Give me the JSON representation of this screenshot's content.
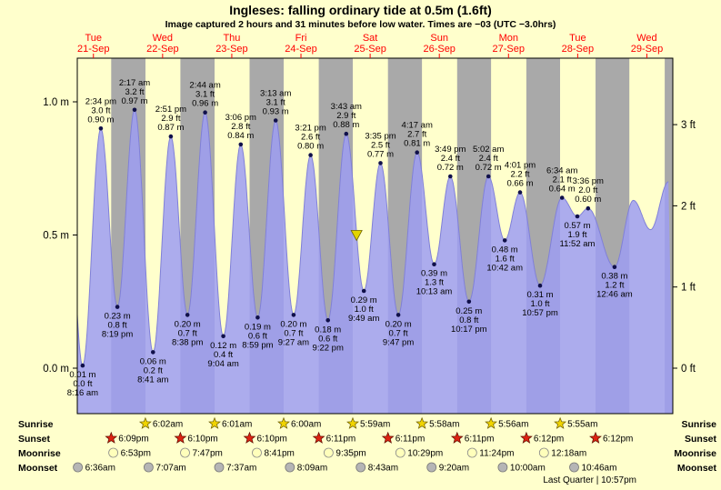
{
  "chart_data": {
    "type": "area",
    "title": "Ingleses: falling  ordinary tide at 0.5m (1.6ft)",
    "subtitle": "Image captured 2 hours and 31 minutes before low water. Times are −03 (UTC −3.0hrs)",
    "y_axis_left": {
      "unit": "m",
      "ticks": [
        {
          "label": "0.0 m",
          "m": 0
        },
        {
          "label": "0.5 m",
          "m": 0.5
        },
        {
          "label": "1.0 m",
          "m": 1.0
        }
      ]
    },
    "y_axis_right": {
      "unit": "ft",
      "ticks": [
        {
          "label": "0 ft",
          "m": 0
        },
        {
          "label": "1 ft",
          "m": 0.3048
        },
        {
          "label": "2 ft",
          "m": 0.6096
        },
        {
          "label": "3 ft",
          "m": 0.9144
        }
      ]
    },
    "days": [
      {
        "name": "Tue",
        "date": "21-Sep"
      },
      {
        "name": "Wed",
        "date": "22-Sep"
      },
      {
        "name": "Thu",
        "date": "23-Sep"
      },
      {
        "name": "Fri",
        "date": "24-Sep"
      },
      {
        "name": "Sat",
        "date": "25-Sep"
      },
      {
        "name": "Sun",
        "date": "26-Sep"
      },
      {
        "name": "Mon",
        "date": "27-Sep"
      },
      {
        "name": "Tue",
        "date": "28-Sep"
      },
      {
        "name": "Wed",
        "date": "29-Sep"
      }
    ],
    "tide_events": [
      {
        "day": 0,
        "hour": 2.0,
        "m": 0.95,
        "type": "high",
        "synthetic": true
      },
      {
        "day": 0,
        "time": "8:16 am",
        "m": 0.01,
        "ft": 0.0,
        "type": "low"
      },
      {
        "day": 0,
        "time": "2:34 pm",
        "m": 0.9,
        "ft": 3.0,
        "type": "high"
      },
      {
        "day": 0,
        "time": "8:19 pm",
        "m": 0.23,
        "ft": 0.8,
        "type": "low"
      },
      {
        "day": 1,
        "time": "2:17 am",
        "m": 0.97,
        "ft": 3.2,
        "type": "high"
      },
      {
        "day": 1,
        "time": "8:41 am",
        "m": 0.06,
        "ft": 0.2,
        "type": "low"
      },
      {
        "day": 1,
        "time": "2:51 pm",
        "m": 0.87,
        "ft": 2.9,
        "type": "high"
      },
      {
        "day": 1,
        "time": "8:38 pm",
        "m": 0.2,
        "ft": 0.7,
        "type": "low"
      },
      {
        "day": 2,
        "time": "2:44 am",
        "m": 0.96,
        "ft": 3.1,
        "type": "high"
      },
      {
        "day": 2,
        "time": "9:04 am",
        "m": 0.12,
        "ft": 0.4,
        "type": "low"
      },
      {
        "day": 2,
        "time": "3:06 pm",
        "m": 0.84,
        "ft": 2.8,
        "type": "high"
      },
      {
        "day": 2,
        "time": "8:59 pm",
        "m": 0.19,
        "ft": 0.6,
        "type": "low"
      },
      {
        "day": 3,
        "time": "3:13 am",
        "m": 0.93,
        "ft": 3.1,
        "type": "high"
      },
      {
        "day": 3,
        "time": "9:27 am",
        "m": 0.2,
        "ft": 0.7,
        "type": "low"
      },
      {
        "day": 3,
        "time": "3:21 pm",
        "m": 0.8,
        "ft": 2.6,
        "type": "high"
      },
      {
        "day": 3,
        "time": "9:22 pm",
        "m": 0.18,
        "ft": 0.6,
        "type": "low"
      },
      {
        "day": 4,
        "time": "3:43 am",
        "m": 0.88,
        "ft": 2.9,
        "type": "high"
      },
      {
        "day": 4,
        "time": "9:49 am",
        "m": 0.29,
        "ft": 1.0,
        "type": "low"
      },
      {
        "day": 4,
        "time": "3:35 pm",
        "m": 0.77,
        "ft": 2.5,
        "type": "high"
      },
      {
        "day": 4,
        "time": "9:47 pm",
        "m": 0.2,
        "ft": 0.7,
        "type": "low"
      },
      {
        "day": 5,
        "time": "4:17 am",
        "m": 0.81,
        "ft": 2.7,
        "type": "high"
      },
      {
        "day": 5,
        "time": "10:13 am",
        "m": 0.39,
        "ft": 1.3,
        "type": "low"
      },
      {
        "day": 5,
        "time": "3:49 pm",
        "m": 0.72,
        "ft": 2.4,
        "type": "high"
      },
      {
        "day": 5,
        "time": "10:17 pm",
        "m": 0.25,
        "ft": 0.8,
        "type": "low"
      },
      {
        "day": 6,
        "time": "5:02 am",
        "m": 0.72,
        "ft": 2.4,
        "type": "high"
      },
      {
        "day": 6,
        "time": "10:42 am",
        "m": 0.48,
        "ft": 1.6,
        "type": "low"
      },
      {
        "day": 6,
        "time": "4:01 pm",
        "m": 0.66,
        "ft": 2.2,
        "type": "high"
      },
      {
        "day": 6,
        "time": "10:57 pm",
        "m": 0.31,
        "ft": 1.0,
        "type": "low"
      },
      {
        "day": 7,
        "time": "6:34 am",
        "m": 0.64,
        "ft": 2.1,
        "type": "high"
      },
      {
        "day": 7,
        "time": "11:52 am",
        "m": 0.57,
        "ft": 1.9,
        "type": "low"
      },
      {
        "day": 7,
        "time": "3:36 pm",
        "m": 0.6,
        "ft": 2.0,
        "type": "high"
      },
      {
        "day": 8,
        "time": "12:46 am",
        "m": 0.38,
        "ft": 1.2,
        "type": "low"
      },
      {
        "day": 8,
        "hour": 7.3,
        "m": 0.63,
        "type": "high",
        "synthetic": true
      },
      {
        "day": 8,
        "hour": 13.3,
        "m": 0.52,
        "type": "low",
        "synthetic": true
      },
      {
        "day": 8,
        "hour": 19.5,
        "m": 0.7,
        "type": "high",
        "synthetic": true
      }
    ],
    "current_marker": {
      "day": 4,
      "time": "7:18 am",
      "m": 0.5
    },
    "colors": {
      "background": "#ffffcc",
      "night_band": "#a9a9a9",
      "tide_area": "#9e9ef2",
      "day_label": "#ff0000",
      "marker": "#e3d400",
      "point": "#10104a"
    }
  },
  "almanac": {
    "row_labels": [
      "Sunrise",
      "Sunset",
      "Moonrise",
      "Moonset"
    ],
    "sunrise": [
      {
        "day": 1,
        "time": "6:02am"
      },
      {
        "day": 2,
        "time": "6:01am"
      },
      {
        "day": 3,
        "time": "6:00am"
      },
      {
        "day": 4,
        "time": "5:59am"
      },
      {
        "day": 5,
        "time": "5:58am"
      },
      {
        "day": 6,
        "time": "5:56am"
      },
      {
        "day": 7,
        "time": "5:55am"
      }
    ],
    "sunset": [
      {
        "day": 0,
        "time": "6:09pm"
      },
      {
        "day": 1,
        "time": "6:10pm"
      },
      {
        "day": 2,
        "time": "6:10pm"
      },
      {
        "day": 3,
        "time": "6:11pm"
      },
      {
        "day": 4,
        "time": "6:11pm"
      },
      {
        "day": 5,
        "time": "6:11pm"
      },
      {
        "day": 6,
        "time": "6:12pm"
      },
      {
        "day": 7,
        "time": "6:12pm"
      }
    ],
    "moonrise": [
      {
        "day": 0,
        "time": "6:53pm"
      },
      {
        "day": 1,
        "time": "7:47pm"
      },
      {
        "day": 2,
        "time": "8:41pm"
      },
      {
        "day": 3,
        "time": "9:35pm"
      },
      {
        "day": 4,
        "time": "10:29pm"
      },
      {
        "day": 5,
        "time": "11:24pm"
      },
      {
        "day": 7,
        "time": "12:18am"
      }
    ],
    "moonset": [
      {
        "day": 0,
        "time": "6:36am"
      },
      {
        "day": 1,
        "time": "7:07am"
      },
      {
        "day": 2,
        "time": "7:37am"
      },
      {
        "day": 3,
        "time": "8:09am"
      },
      {
        "day": 4,
        "time": "8:43am"
      },
      {
        "day": 5,
        "time": "9:20am"
      },
      {
        "day": 6,
        "time": "10:00am"
      },
      {
        "day": 7,
        "time": "10:46am"
      }
    ],
    "footer": "Last Quarter | 10:57pm"
  }
}
